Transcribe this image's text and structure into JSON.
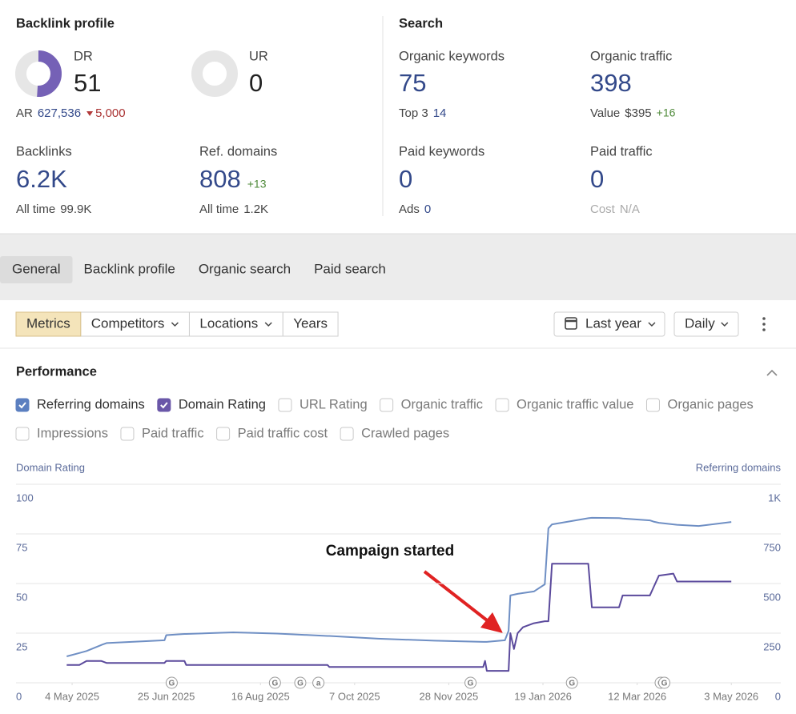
{
  "backlink_profile": {
    "title": "Backlink profile",
    "dr": {
      "label": "DR",
      "value": 51
    },
    "ur": {
      "label": "UR",
      "value": 0
    },
    "ar": {
      "label": "AR",
      "value": "627,536",
      "change": "5,000"
    },
    "backlinks": {
      "label": "Backlinks",
      "value": "6.2K",
      "all_time_label": "All time",
      "all_time_value": "99.9K"
    },
    "ref_domains": {
      "label": "Ref. domains",
      "value": 808,
      "change": "+13",
      "all_time_label": "All time",
      "all_time_value": "1.2K"
    }
  },
  "search": {
    "title": "Search",
    "organic_keywords": {
      "label": "Organic keywords",
      "value": 75,
      "sub_label": "Top 3",
      "sub_value": 14
    },
    "organic_traffic": {
      "label": "Organic traffic",
      "value": 398,
      "sub_label": "Value",
      "sub_value": "$395",
      "change": "+16"
    },
    "paid_keywords": {
      "label": "Paid keywords",
      "value": 0,
      "sub_label": "Ads",
      "sub_value": 0
    },
    "paid_traffic": {
      "label": "Paid traffic",
      "value": 0,
      "sub_label": "Cost",
      "sub_value": "N/A"
    }
  },
  "tabs": [
    {
      "label": "General",
      "active": true
    },
    {
      "label": "Backlink profile",
      "active": false
    },
    {
      "label": "Organic search",
      "active": false
    },
    {
      "label": "Paid search",
      "active": false
    }
  ],
  "toolbar": {
    "segments": [
      {
        "label": "Metrics",
        "active": true,
        "dropdown": false
      },
      {
        "label": "Competitors",
        "active": false,
        "dropdown": true
      },
      {
        "label": "Locations",
        "active": false,
        "dropdown": true
      },
      {
        "label": "Years",
        "active": false,
        "dropdown": false
      }
    ],
    "period": "Last year",
    "interval": "Daily"
  },
  "performance": {
    "title": "Performance",
    "metrics": [
      {
        "label": "Referring domains",
        "checked": true,
        "color": "#5b7fc0"
      },
      {
        "label": "Domain Rating",
        "checked": true,
        "color": "#6a57a8"
      },
      {
        "label": "URL Rating",
        "checked": false
      },
      {
        "label": "Organic traffic",
        "checked": false
      },
      {
        "label": "Organic traffic value",
        "checked": false
      },
      {
        "label": "Organic pages",
        "checked": false
      },
      {
        "label": "Impressions",
        "checked": false
      },
      {
        "label": "Paid traffic",
        "checked": false
      },
      {
        "label": "Paid traffic cost",
        "checked": false
      },
      {
        "label": "Crawled pages",
        "checked": false
      }
    ]
  },
  "chart_data": {
    "type": "line",
    "y_label": "Domain Rating",
    "y2_label": "Referring domains",
    "annotation": "Campaign started",
    "xlim": [
      "2025-04-30",
      "2026-05-06"
    ],
    "xticks": [
      {
        "value": "2025-05-04",
        "label": "4 May 2025"
      },
      {
        "value": "2025-06-25",
        "label": "25 Jun 2025"
      },
      {
        "value": "2025-08-16",
        "label": "16 Aug 2025"
      },
      {
        "value": "2025-10-07",
        "label": "7 Oct 2025"
      },
      {
        "value": "2025-11-28",
        "label": "28 Nov 2025"
      },
      {
        "value": "2026-01-19",
        "label": "19 Jan 2026"
      },
      {
        "value": "2026-03-12",
        "label": "12 Mar 2026"
      },
      {
        "value": "2026-05-03",
        "label": "3 May 2026"
      }
    ],
    "ylim": [
      0,
      100
    ],
    "yticks": [
      0,
      25,
      50,
      75,
      100
    ],
    "y2lim": [
      0,
      1000
    ],
    "y2ticks": [
      0,
      250,
      500,
      750,
      {
        "value": 1000,
        "label": "1K"
      }
    ],
    "grid": true,
    "x": [
      "2025-05-01",
      "2025-05-08",
      "2025-05-12",
      "2025-05-20",
      "2025-05-23",
      "2025-06-15",
      "2025-06-24",
      "2025-06-25",
      "2025-07-05",
      "2025-07-06",
      "2025-08-01",
      "2025-08-25",
      "2025-09-22",
      "2025-09-23",
      "2025-10-20",
      "2025-11-20",
      "2025-12-17",
      "2025-12-18",
      "2025-12-19",
      "2025-12-29",
      "2025-12-31",
      "2026-01-01",
      "2026-01-03",
      "2026-01-05",
      "2026-01-08",
      "2026-01-14",
      "2026-01-20",
      "2026-01-22",
      "2026-01-24",
      "2026-02-13",
      "2026-02-15",
      "2026-03-02",
      "2026-03-04",
      "2026-03-19",
      "2026-03-21",
      "2026-03-24",
      "2026-04-01",
      "2026-04-03",
      "2026-04-15",
      "2026-05-03"
    ],
    "series": [
      {
        "name": "Referring domains",
        "color": "#6f8fc4",
        "axis": "y2",
        "values": [
          133,
          150,
          160,
          190,
          200,
          210,
          214,
          240,
          246,
          246,
          254,
          248,
          236,
          236,
          222,
          212,
          206,
          206,
          206,
          214,
          262,
          440,
          444,
          448,
          452,
          460,
          496,
          778,
          798,
          829,
          831,
          830,
          828,
          818,
          812,
          806,
          798,
          796,
          790,
          810
        ]
      },
      {
        "name": "Domain Rating",
        "color": "#5b4a9c",
        "values": [
          9,
          9,
          11,
          11,
          10,
          10,
          10,
          11,
          11,
          9,
          9,
          9,
          9,
          8,
          8,
          8,
          8,
          11,
          6,
          6,
          6,
          25,
          17,
          25,
          28,
          30,
          31,
          31,
          60,
          60,
          38,
          38,
          44,
          44,
          48,
          54,
          55,
          51,
          51,
          51
        ]
      }
    ],
    "events": [
      {
        "x": "2025-06-28",
        "label": "G"
      },
      {
        "x": "2025-08-24",
        "label": "G"
      },
      {
        "x": "2025-09-07",
        "label": "G"
      },
      {
        "x": "2025-09-17",
        "label": "a"
      },
      {
        "x": "2025-12-10",
        "label": "G"
      },
      {
        "x": "2026-02-04",
        "label": "G"
      },
      {
        "x": "2026-03-25",
        "label": "G"
      },
      {
        "x": "2026-03-27",
        "label": "G"
      }
    ]
  }
}
